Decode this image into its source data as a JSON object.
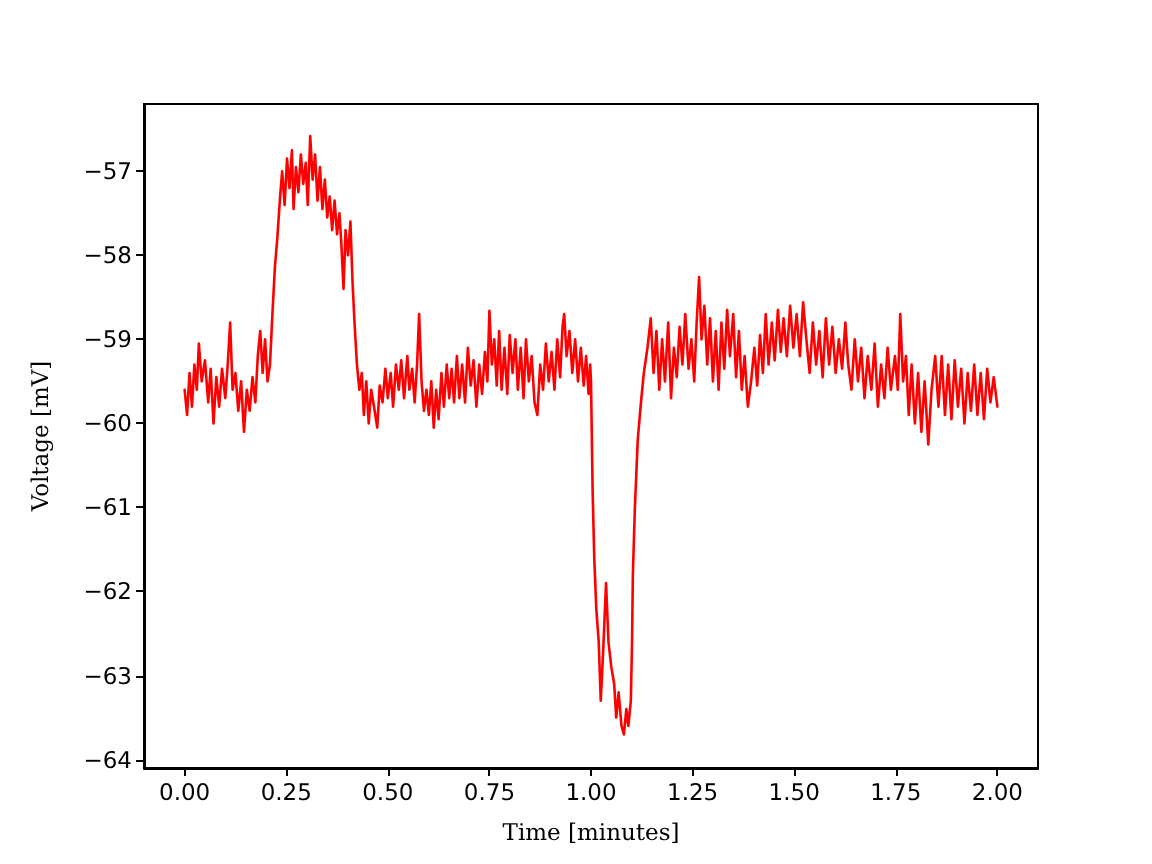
{
  "chart_data": {
    "type": "line",
    "xlabel": "Time [minutes]",
    "ylabel": "Voltage [mV]",
    "color": "#ff0000",
    "xlim": [
      -0.1,
      2.1
    ],
    "ylim": [
      -64.1,
      -56.2
    ],
    "xticks": [
      {
        "value": 0,
        "label": "0.00"
      },
      {
        "value": 0.25,
        "label": "0.25"
      },
      {
        "value": 0.5,
        "label": "0.50"
      },
      {
        "value": 0.75,
        "label": "0.75"
      },
      {
        "value": 1,
        "label": "1.00"
      },
      {
        "value": 1.25,
        "label": "1.25"
      },
      {
        "value": 1.5,
        "label": "1.50"
      },
      {
        "value": 1.75,
        "label": "1.75"
      },
      {
        "value": 2,
        "label": "2.00"
      }
    ],
    "yticks": [
      {
        "value": -64,
        "label": "−64"
      },
      {
        "value": -63,
        "label": "−63"
      },
      {
        "value": -62,
        "label": "−62"
      },
      {
        "value": -61,
        "label": "−61"
      },
      {
        "value": -60,
        "label": "−60"
      },
      {
        "value": -59,
        "label": "−59"
      },
      {
        "value": -58,
        "label": "−58"
      },
      {
        "value": -57,
        "label": "−57"
      }
    ],
    "x": [
      0,
      0.006,
      0.012,
      0.018,
      0.024,
      0.03,
      0.035,
      0.042,
      0.05,
      0.058,
      0.064,
      0.071,
      0.078,
      0.085,
      0.092,
      0.1,
      0.106,
      0.112,
      0.118,
      0.125,
      0.132,
      0.139,
      0.146,
      0.153,
      0.16,
      0.167,
      0.174,
      0.18,
      0.186,
      0.192,
      0.198,
      0.204,
      0.21,
      0.216,
      0.222,
      0.228,
      0.235,
      0.24,
      0.246,
      0.252,
      0.258,
      0.264,
      0.268,
      0.274,
      0.28,
      0.286,
      0.292,
      0.298,
      0.303,
      0.309,
      0.315,
      0.321,
      0.327,
      0.333,
      0.339,
      0.345,
      0.351,
      0.357,
      0.363,
      0.369,
      0.375,
      0.381,
      0.386,
      0.391,
      0.396,
      0.402,
      0.408,
      0.413,
      0.418,
      0.424,
      0.43,
      0.436,
      0.441,
      0.447,
      0.453,
      0.459,
      0.466,
      0.474,
      0.48,
      0.487,
      0.494,
      0.5,
      0.507,
      0.513,
      0.52,
      0.527,
      0.533,
      0.54,
      0.548,
      0.553,
      0.56,
      0.566,
      0.572,
      0.577,
      0.583,
      0.589,
      0.595,
      0.601,
      0.607,
      0.613,
      0.619,
      0.625,
      0.632,
      0.638,
      0.645,
      0.651,
      0.657,
      0.663,
      0.67,
      0.676,
      0.683,
      0.69,
      0.697,
      0.704,
      0.711,
      0.718,
      0.725,
      0.732,
      0.739,
      0.745,
      0.75,
      0.756,
      0.762,
      0.768,
      0.774,
      0.78,
      0.787,
      0.794,
      0.8,
      0.807,
      0.814,
      0.82,
      0.827,
      0.834,
      0.84,
      0.847,
      0.854,
      0.861,
      0.868,
      0.875,
      0.882,
      0.889,
      0.896,
      0.903,
      0.91,
      0.917,
      0.924,
      0.93,
      0.934,
      0.94,
      0.947,
      0.954,
      0.961,
      0.968,
      0.975,
      0.982,
      0.988,
      0.994,
      0.998,
      1,
      1.004,
      1.008,
      1.013,
      1.019,
      1.024,
      1.03,
      1.037,
      1.043,
      1.05,
      1.057,
      1.062,
      1.068,
      1.075,
      1.081,
      1.087,
      1.092,
      1.098,
      1.101,
      1.103,
      1.108,
      1.115,
      1.122,
      1.13,
      1.139,
      1.147,
      1.154,
      1.161,
      1.168,
      1.175,
      1.182,
      1.19,
      1.197,
      1.204,
      1.211,
      1.218,
      1.225,
      1.232,
      1.24,
      1.247,
      1.254,
      1.26,
      1.266,
      1.272,
      1.279,
      1.286,
      1.293,
      1.3,
      1.307,
      1.314,
      1.321,
      1.328,
      1.335,
      1.342,
      1.35,
      1.357,
      1.364,
      1.371,
      1.378,
      1.386,
      1.394,
      1.402,
      1.409,
      1.416,
      1.423,
      1.43,
      1.437,
      1.445,
      1.452,
      1.46,
      1.467,
      1.474,
      1.482,
      1.49,
      1.498,
      1.506,
      1.514,
      1.522,
      1.53,
      1.538,
      1.546,
      1.554,
      1.562,
      1.57,
      1.578,
      1.586,
      1.594,
      1.602,
      1.61,
      1.618,
      1.626,
      1.633,
      1.641,
      1.649,
      1.657,
      1.665,
      1.673,
      1.681,
      1.69,
      1.698,
      1.706,
      1.714,
      1.722,
      1.73,
      1.738,
      1.748,
      1.755,
      1.761,
      1.768,
      1.775,
      1.782,
      1.789,
      1.797,
      1.805,
      1.813,
      1.821,
      1.83,
      1.838,
      1.847,
      1.855,
      1.863,
      1.871,
      1.879,
      1.887,
      1.895,
      1.903,
      1.911,
      1.919,
      1.927,
      1.935,
      1.943,
      1.951,
      1.959,
      1.967,
      1.975,
      1.983,
      1.991,
      2
    ],
    "values": [
      -59.6,
      -59.9,
      -59.4,
      -59.8,
      -59.3,
      -59.6,
      -59.05,
      -59.5,
      -59.25,
      -59.75,
      -59.35,
      -60,
      -59.45,
      -59.8,
      -59.35,
      -59.7,
      -59.3,
      -58.8,
      -59.6,
      -59.4,
      -59.85,
      -59.5,
      -60.1,
      -59.6,
      -59.85,
      -59.45,
      -59.75,
      -59.2,
      -58.9,
      -59.4,
      -59,
      -59.5,
      -59.3,
      -58.7,
      -58.15,
      -57.8,
      -57.3,
      -57,
      -57.4,
      -56.85,
      -57.2,
      -56.75,
      -57.45,
      -56.95,
      -57.25,
      -56.8,
      -57.15,
      -56.9,
      -57.4,
      -56.58,
      -57.1,
      -56.8,
      -57.35,
      -56.95,
      -57.45,
      -57.1,
      -57.55,
      -57.3,
      -57.7,
      -57.35,
      -57.75,
      -57.5,
      -57.9,
      -58.4,
      -57.7,
      -58,
      -57.6,
      -58.3,
      -58.8,
      -59.3,
      -59.6,
      -59.4,
      -59.9,
      -59.5,
      -60,
      -59.6,
      -59.8,
      -60.05,
      -59.55,
      -59.75,
      -59.35,
      -59.7,
      -59.4,
      -59.8,
      -59.3,
      -59.6,
      -59.25,
      -59.7,
      -59.2,
      -59.6,
      -59.35,
      -59.75,
      -59.3,
      -58.7,
      -59.5,
      -59.85,
      -59.6,
      -59.9,
      -59.5,
      -60.05,
      -59.6,
      -59.95,
      -59.4,
      -59.8,
      -59.3,
      -59.7,
      -59.35,
      -59.75,
      -59.2,
      -59.7,
      -59.3,
      -59.75,
      -59.1,
      -59.55,
      -59.25,
      -59.8,
      -59.3,
      -59.65,
      -59.15,
      -59.5,
      -58.66,
      -59.3,
      -59,
      -59.55,
      -58.9,
      -59.6,
      -59.1,
      -59.65,
      -58.95,
      -59.4,
      -59,
      -59.6,
      -59.1,
      -59.7,
      -59,
      -59.5,
      -59.2,
      -59.75,
      -59.9,
      -59.3,
      -59.6,
      -59.05,
      -59.5,
      -59.15,
      -59.6,
      -59,
      -59.45,
      -58.85,
      -58.7,
      -59.2,
      -58.9,
      -59.4,
      -59,
      -59.5,
      -59.1,
      -59.55,
      -59.2,
      -59.65,
      -59.3,
      -59.5,
      -60.8,
      -61.6,
      -62.2,
      -62.6,
      -63.3,
      -62.7,
      -61.9,
      -62.6,
      -62.9,
      -63.1,
      -63.5,
      -63.2,
      -63.6,
      -63.7,
      -63.4,
      -63.6,
      -63.3,
      -62.6,
      -61.8,
      -61,
      -60.2,
      -59.8,
      -59.4,
      -59.1,
      -58.75,
      -59.4,
      -58.9,
      -59.6,
      -59,
      -59.5,
      -58.8,
      -59.7,
      -59.1,
      -59.45,
      -58.85,
      -59.3,
      -58.7,
      -59.35,
      -59,
      -59.5,
      -58.8,
      -58.26,
      -59,
      -58.6,
      -59.3,
      -58.75,
      -59.5,
      -58.9,
      -59.6,
      -58.8,
      -59.35,
      -58.65,
      -59.2,
      -58.7,
      -59.45,
      -58.9,
      -59.6,
      -59.2,
      -59.8,
      -59.5,
      -59.1,
      -59.55,
      -58.95,
      -59.4,
      -58.7,
      -59.3,
      -58.8,
      -59.25,
      -58.65,
      -59.15,
      -58.75,
      -59.2,
      -58.6,
      -59.1,
      -58.7,
      -59.2,
      -58.56,
      -59,
      -59.4,
      -58.8,
      -59.3,
      -58.9,
      -59.45,
      -58.75,
      -59.3,
      -58.85,
      -59.4,
      -59,
      -59.35,
      -58.8,
      -59.3,
      -59.6,
      -59,
      -59.5,
      -59.1,
      -59.7,
      -59.2,
      -59.6,
      -59.05,
      -59.8,
      -59.3,
      -59.7,
      -59.1,
      -59.6,
      -59.2,
      -59.6,
      -58.7,
      -59.5,
      -59.2,
      -59.9,
      -59.3,
      -60,
      -59.4,
      -60.1,
      -59.5,
      -60.25,
      -59.6,
      -59.2,
      -59.8,
      -59.2,
      -59.9,
      -59.3,
      -59.95,
      -59.25,
      -59.8,
      -59.35,
      -60,
      -59.4,
      -59.85,
      -59.3,
      -59.9,
      -59.4,
      -59.95,
      -59.35,
      -59.75,
      -59.45,
      -59.8
    ]
  }
}
